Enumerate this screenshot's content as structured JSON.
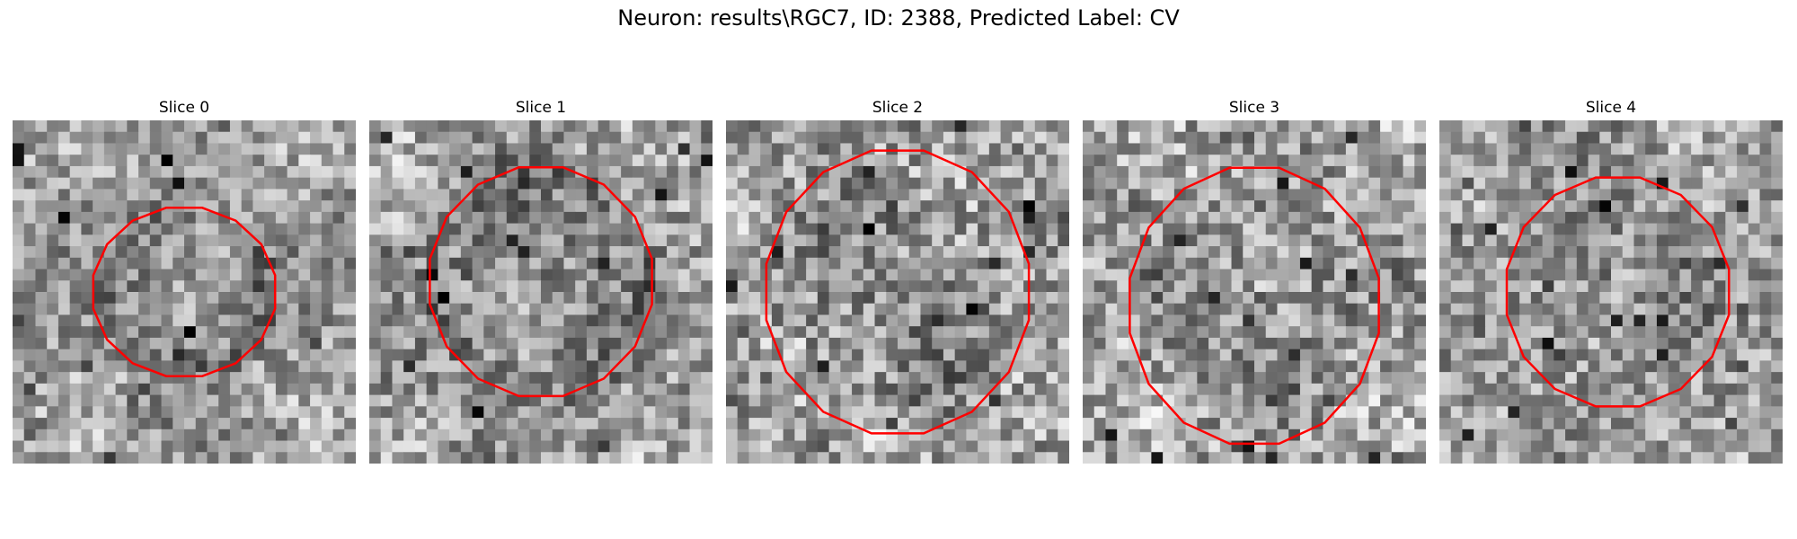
{
  "figure": {
    "title": "Neuron: results\\RGC7, ID: 2388, Predicted Label: CV",
    "roi_color": "#ff0000",
    "slices": [
      {
        "title": "Slice 0",
        "seed": 11,
        "roi": [
          0.5,
          0.5,
          0.27,
          0.25
        ],
        "bg": [
          0.22,
          0.34,
          0.24,
          0.08
        ]
      },
      {
        "title": "Slice 1",
        "seed": 23,
        "roi": [
          0.5,
          0.47,
          0.33,
          0.34
        ],
        "bg": [
          0.2,
          0.32,
          0.26,
          0.06
        ]
      },
      {
        "title": "Slice 2",
        "seed": 37,
        "roi": [
          0.5,
          0.5,
          0.39,
          0.42
        ],
        "bg": [
          0.18,
          0.3,
          0.28,
          -0.05
        ]
      },
      {
        "title": "Slice 3",
        "seed": 41,
        "roi": [
          0.5,
          0.54,
          0.37,
          0.41
        ],
        "bg": [
          0.15,
          0.33,
          0.27,
          -0.06
        ]
      },
      {
        "title": "Slice 4",
        "seed": 59,
        "roi": [
          0.52,
          0.5,
          0.33,
          0.34
        ],
        "bg": [
          0.12,
          0.35,
          0.25,
          -0.02
        ]
      }
    ]
  }
}
